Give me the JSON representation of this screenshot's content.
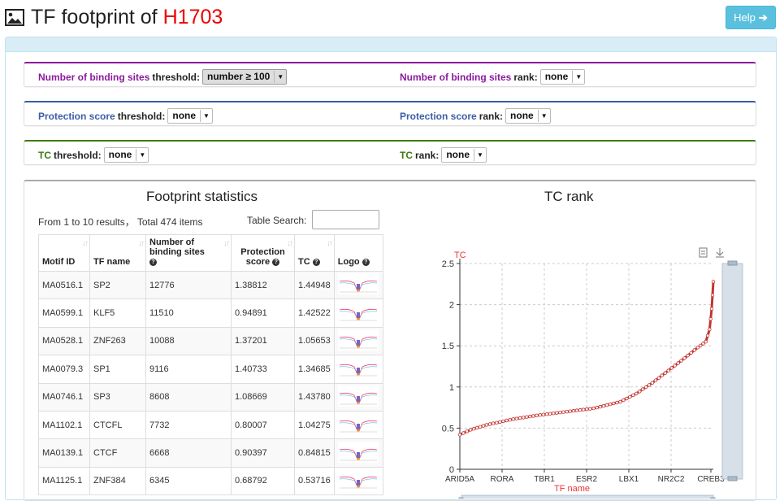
{
  "header": {
    "title_prefix": "TF footprint of",
    "cell_line": "H1703",
    "help_label": "Help"
  },
  "filters": [
    {
      "left_key": "Number of binding sites",
      "left_rest": "threshold:",
      "left_value": "number ≥ 100",
      "right_key": "Number of binding sites",
      "right_rest": "rank:",
      "right_value": "none",
      "color": "#8b1a9e"
    },
    {
      "left_key": "Protection score",
      "left_rest": "threshold:",
      "left_value": "none",
      "right_key": "Protection score",
      "right_rest": "rank:",
      "right_value": "none",
      "color": "#3b5da8"
    },
    {
      "left_key": "TC",
      "left_rest": "threshold:",
      "left_value": "none",
      "right_key": "TC",
      "right_rest": "rank:",
      "right_value": "none",
      "color": "#3d7a0f"
    }
  ],
  "stats": {
    "title": "Footprint statistics",
    "info": "From 1 to 10 results， Total 474 items",
    "search_label": "Table Search:",
    "columns": [
      "Motif ID",
      "TF name",
      "Number of binding sites",
      "Protection score",
      "TC",
      "Logo"
    ],
    "rows": [
      [
        "MA0516.1",
        "SP2",
        "12776",
        "1.38812",
        "1.44948"
      ],
      [
        "MA0599.1",
        "KLF5",
        "11510",
        "0.94891",
        "1.42522"
      ],
      [
        "MA0528.1",
        "ZNF263",
        "10088",
        "1.37201",
        "1.05653"
      ],
      [
        "MA0079.3",
        "SP1",
        "9116",
        "1.40733",
        "1.34685"
      ],
      [
        "MA0746.1",
        "SP3",
        "8608",
        "1.08669",
        "1.43780"
      ],
      [
        "MA1102.1",
        "CTCFL",
        "7732",
        "0.80007",
        "1.04275"
      ],
      [
        "MA0139.1",
        "CTCF",
        "6668",
        "0.90397",
        "0.84815"
      ],
      [
        "MA1125.1",
        "ZNF384",
        "6345",
        "0.68792",
        "0.53716"
      ]
    ]
  },
  "chart_data": {
    "type": "line",
    "title": "TC rank",
    "ylabel": "TC",
    "xlabel": "TF name",
    "ylim": [
      0,
      2.5
    ],
    "yticks": [
      "0",
      "0.5",
      "1",
      "1.5",
      "2",
      "2.5"
    ],
    "xticks": [
      "ARID5A",
      "RORA",
      "TBR1",
      "ESR2",
      "LBX1",
      "NR2C2",
      "CREB3"
    ],
    "n": 474,
    "curve": [
      [
        0,
        0.42
      ],
      [
        20,
        0.48
      ],
      [
        50,
        0.54
      ],
      [
        100,
        0.61
      ],
      [
        150,
        0.66
      ],
      [
        200,
        0.7
      ],
      [
        250,
        0.74
      ],
      [
        300,
        0.82
      ],
      [
        330,
        0.92
      ],
      [
        360,
        1.05
      ],
      [
        390,
        1.2
      ],
      [
        420,
        1.35
      ],
      [
        445,
        1.48
      ],
      [
        460,
        1.55
      ],
      [
        467,
        1.7
      ],
      [
        471,
        1.95
      ],
      [
        474,
        2.28
      ]
    ],
    "line_color": "#c23531",
    "grid": true
  },
  "icons": {
    "image": "image-icon",
    "arrow": "arrow-right-icon",
    "sort": "sort-icon",
    "help": "question-icon",
    "doc": "document-icon",
    "download": "download-icon"
  }
}
